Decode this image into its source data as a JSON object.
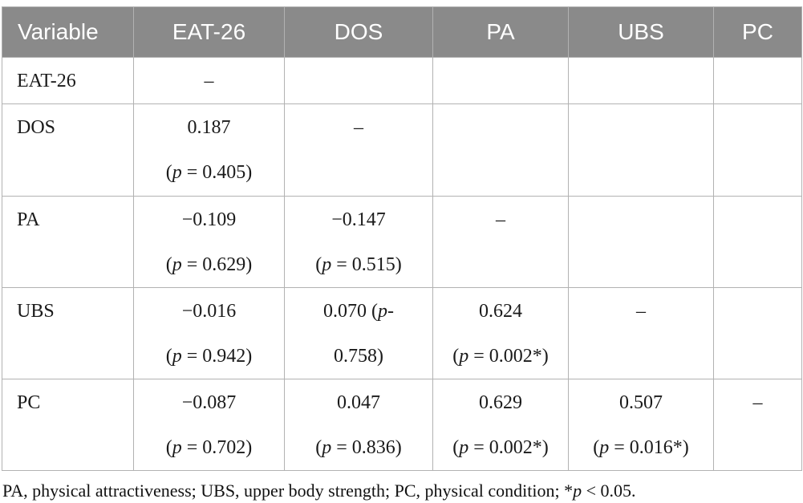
{
  "table": {
    "columns": [
      "Variable",
      "EAT-26",
      "DOS",
      "PA",
      "UBS",
      "PC"
    ],
    "rows": [
      {
        "label": "EAT-26",
        "cells": [
          [
            "–"
          ],
          [],
          [],
          [],
          []
        ]
      },
      {
        "label": "DOS",
        "cells": [
          [
            "0.187",
            "(p = 0.405)"
          ],
          [
            "–"
          ],
          [],
          [],
          []
        ]
      },
      {
        "label": "PA",
        "cells": [
          [
            "−0.109",
            "(p = 0.629)"
          ],
          [
            "−0.147",
            "(p = 0.515)"
          ],
          [
            "–"
          ],
          [],
          []
        ]
      },
      {
        "label": "UBS",
        "cells": [
          [
            "−0.016",
            "(p = 0.942)"
          ],
          [
            "0.070 (p-",
            "0.758)"
          ],
          [
            "0.624",
            "(p = 0.002*)"
          ],
          [
            "–"
          ],
          []
        ]
      },
      {
        "label": "PC",
        "cells": [
          [
            "−0.087",
            "(p = 0.702)"
          ],
          [
            "0.047",
            "(p = 0.836)"
          ],
          [
            "0.629",
            "(p = 0.002*)"
          ],
          [
            "0.507",
            "(p = 0.016*)"
          ],
          [
            "–"
          ]
        ]
      }
    ]
  },
  "footnote": "PA, physical attractiveness; UBS, upper body strength; PC, physical condition; *p < 0.05.",
  "colors": {
    "header_bg": "#8a8a8a",
    "header_text": "#ffffff",
    "border": "#b2b2b2",
    "body_text": "#1a1a1a"
  }
}
